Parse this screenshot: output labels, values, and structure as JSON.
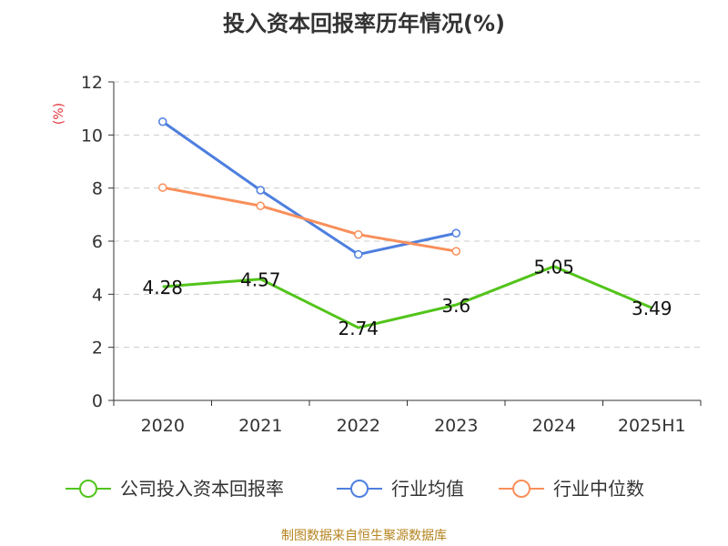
{
  "title": "投入资本回报率历年情况(%)",
  "source": "制图数据来自恒生聚源数据库",
  "chart_data": {
    "type": "line",
    "title": "投入资本回报率历年情况(%)",
    "ylabel": "(%)",
    "xlabel": "",
    "categories": [
      "2020",
      "2021",
      "2022",
      "2023",
      "2024",
      "2025H1"
    ],
    "yticks": [
      "0",
      "2",
      "4",
      "6",
      "8",
      "10",
      "12"
    ],
    "ylim": [
      0,
      12
    ],
    "grid": "horizontal dashed",
    "legend_position": "bottom",
    "series": [
      {
        "name": "公司投入资本回报率",
        "color": "#52c41a",
        "values": [
          4.28,
          4.57,
          2.74,
          3.6,
          5.05,
          3.49
        ],
        "labels": [
          "4.28",
          "4.57",
          "2.74",
          "3.6",
          "5.05",
          "3.49"
        ]
      },
      {
        "name": "行业均值",
        "color": "#4e7fdf",
        "values": [
          10.5,
          7.92,
          5.5,
          6.3,
          null,
          null
        ]
      },
      {
        "name": "行业中位数",
        "color": "#f98f5a",
        "values": [
          8.02,
          7.33,
          6.25,
          5.62,
          null,
          null
        ]
      }
    ]
  }
}
